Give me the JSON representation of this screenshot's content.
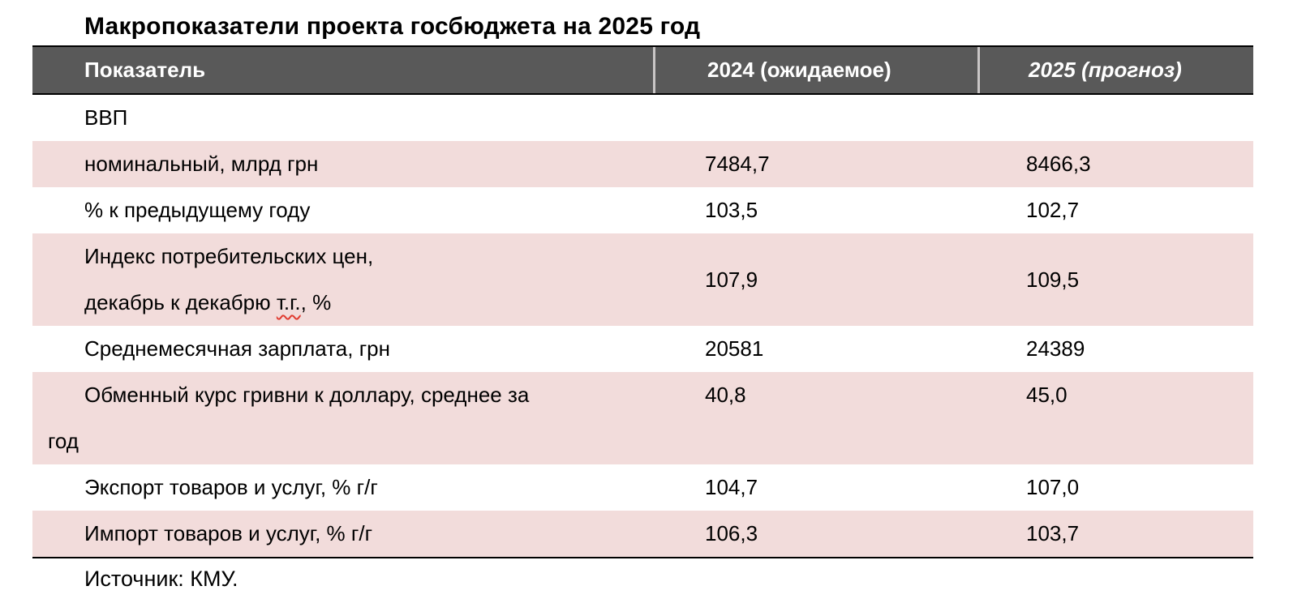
{
  "title": "Макропоказатели проекта госбюджета на 2025 год",
  "colors": {
    "header_bg": "#595959",
    "header_text": "#ffffff",
    "alt_row_bg": "#f2dcdb",
    "spellcheck_underline": "#e03c31"
  },
  "table": {
    "headers": {
      "indicator": "Показатель",
      "y2024": "2024 (ожидаемое)",
      "y2025": "2025 (прогноз)"
    },
    "rows": [
      {
        "indicator": "ВВП",
        "v2024": "",
        "v2025": ""
      },
      {
        "indicator": "номинальный, млрд грн",
        "v2024": "7484,7",
        "v2025": "8466,3"
      },
      {
        "indicator": "% к предыдущему году",
        "v2024": "103,5",
        "v2025": "102,7"
      },
      {
        "indicator_line1": "Индекс потребительских цен,",
        "indicator_line2_prefix": "декабрь к декабрю ",
        "indicator_line2_misspelled": "т.г.",
        "indicator_line2_suffix": ", %",
        "v2024": "107,9",
        "v2025": "109,5"
      },
      {
        "indicator": "Среднемесячная зарплата, грн",
        "v2024": "20581",
        "v2025": "24389"
      },
      {
        "indicator_line1": "Обменный курс гривни к доллару, среднее за",
        "indicator_line2": "год",
        "v2024": "40,8",
        "v2025": "45,0"
      },
      {
        "indicator": "Экспорт товаров и услуг, % г/г",
        "v2024": "104,7",
        "v2025": "107,0"
      },
      {
        "indicator": "Импорт товаров и услуг, % г/г",
        "v2024": "106,3",
        "v2025": "103,7"
      }
    ]
  },
  "source": "Источник: КМУ."
}
